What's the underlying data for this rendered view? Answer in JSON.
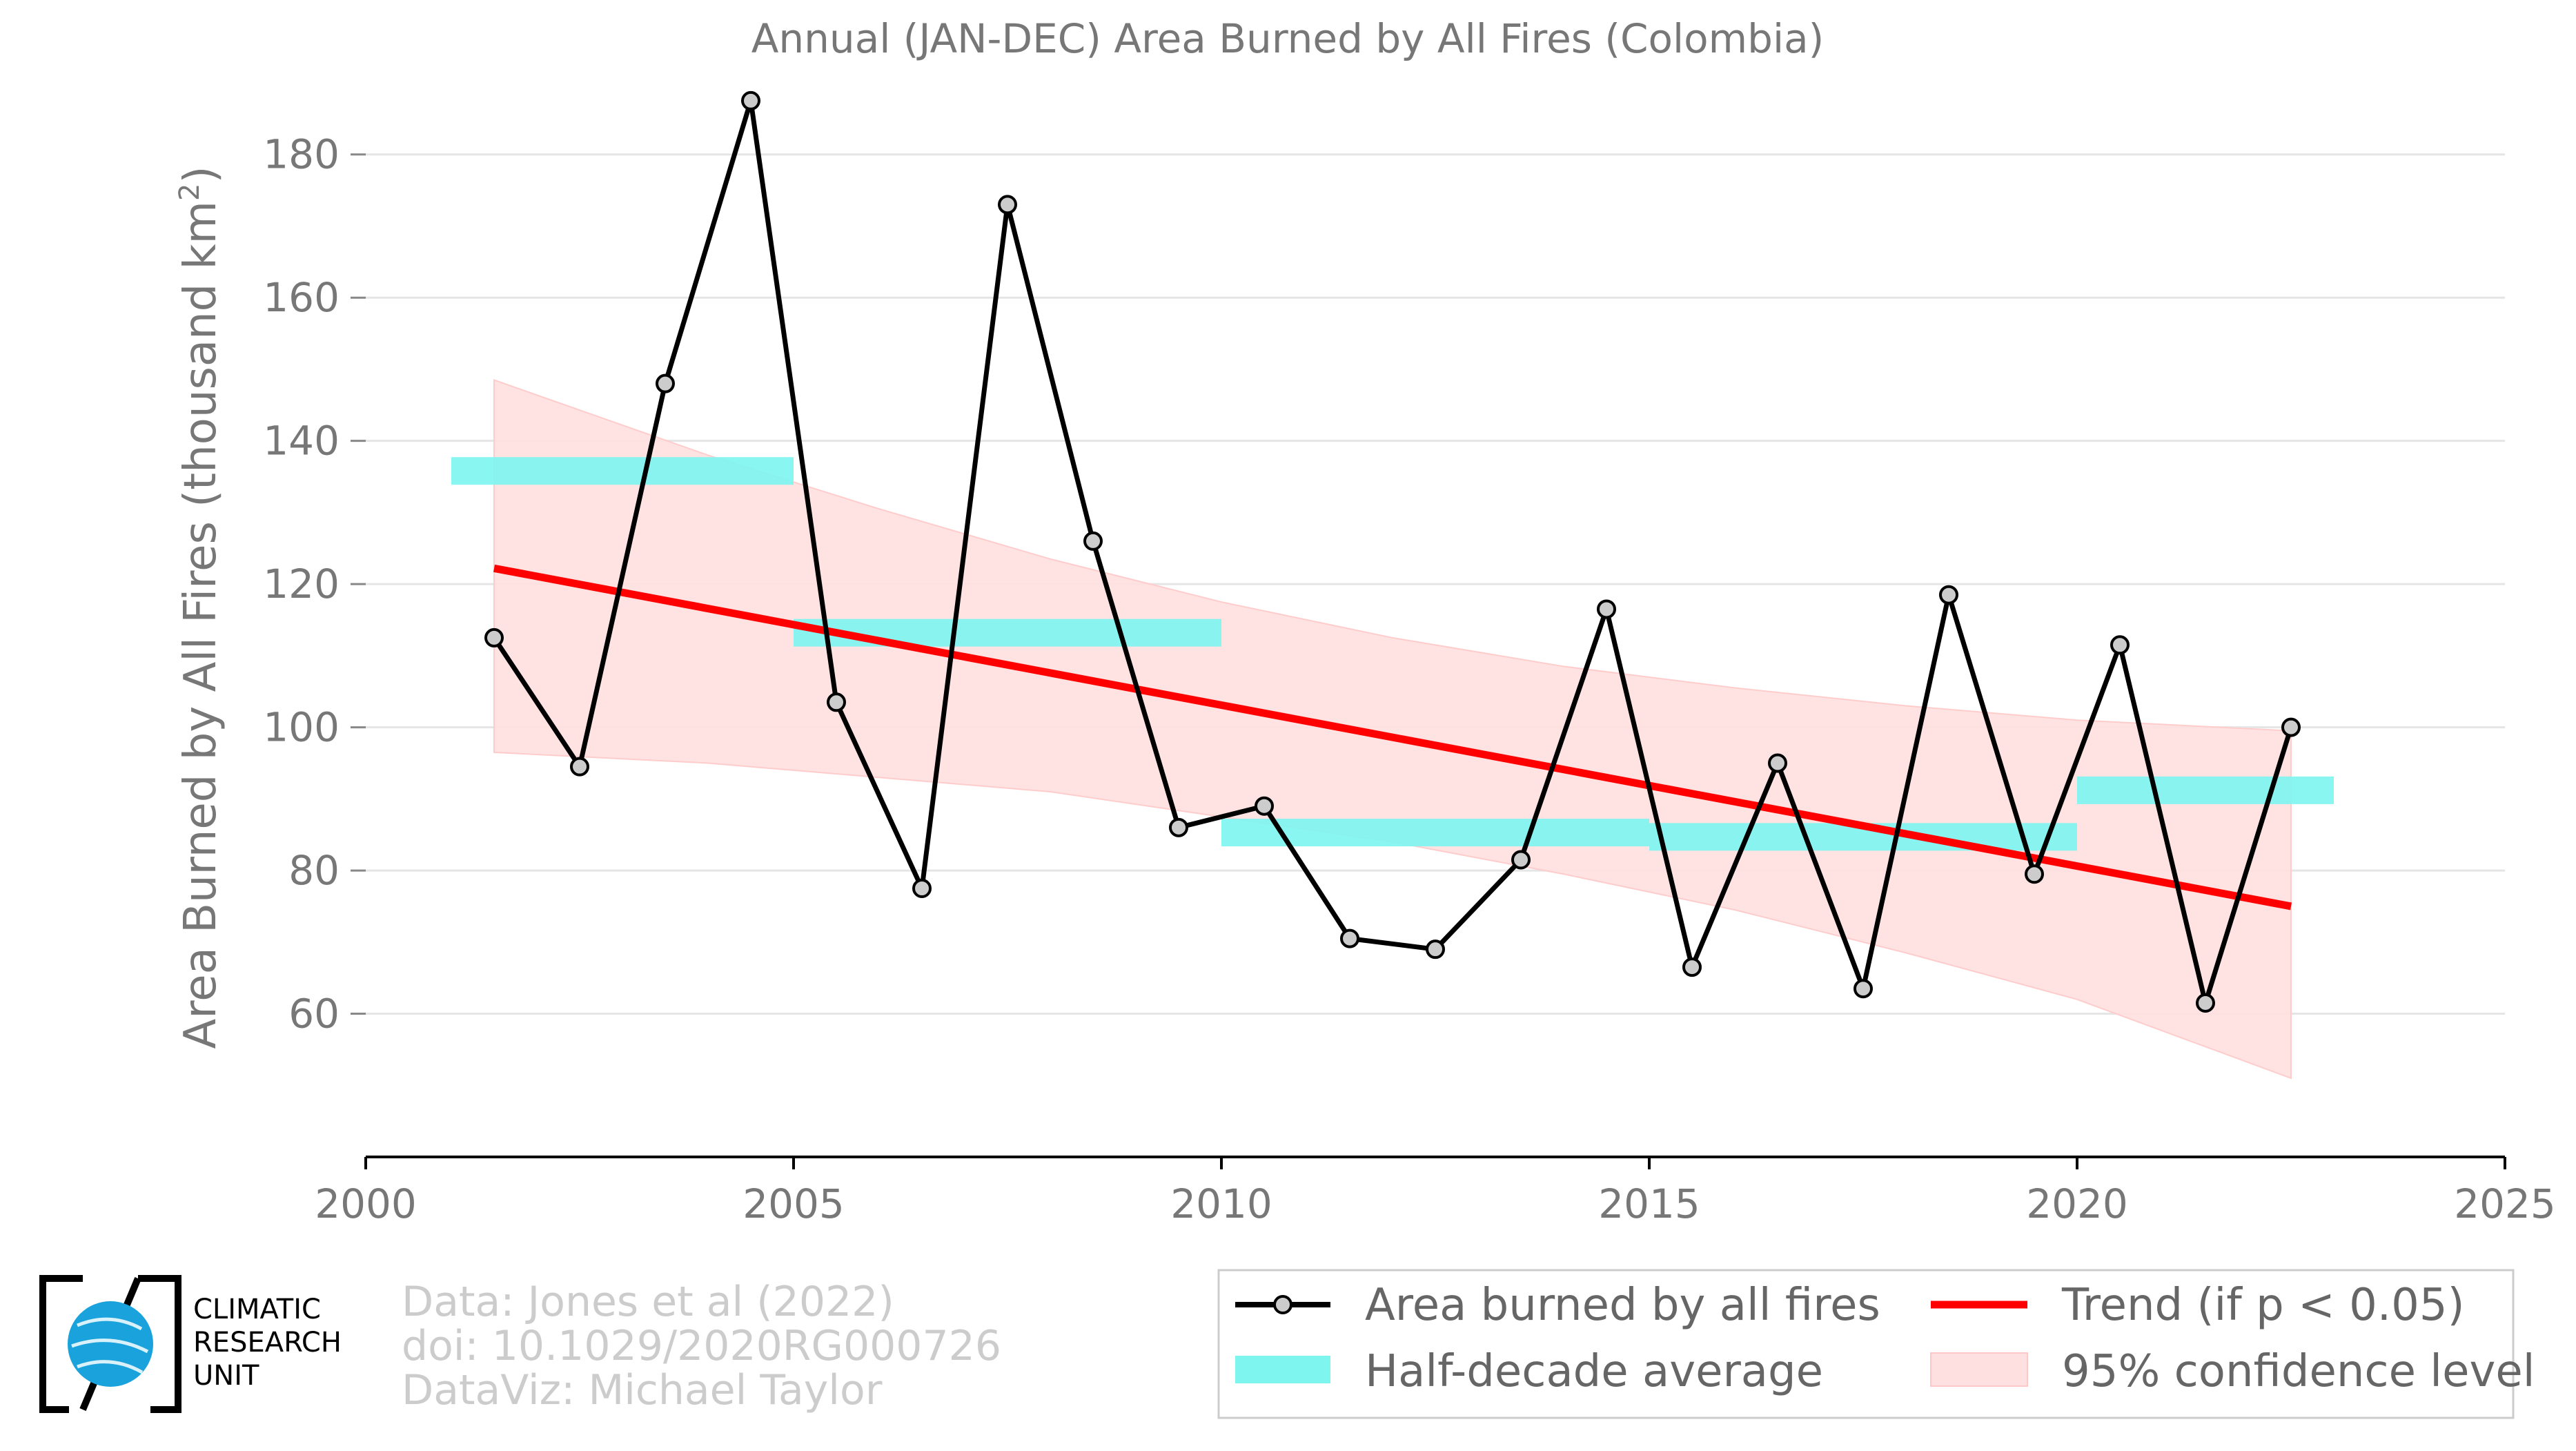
{
  "chart_data": {
    "type": "line",
    "title": "Annual (JAN-DEC) Area Burned by All Fires (Colombia)",
    "ylabel": "Area Burned by All Fires (thousand km",
    "ylabel_sup": "2",
    "ylabel_close": ")",
    "xlim": [
      2000,
      2025
    ],
    "ylim": [
      40,
      190
    ],
    "xticks": [
      2000,
      2005,
      2010,
      2015,
      2020,
      2025
    ],
    "yticks": [
      60,
      80,
      100,
      120,
      140,
      160,
      180
    ],
    "grid": true,
    "legend_position": "bottom-right",
    "series": [
      {
        "name": "Area burned by all fires",
        "color": "#000000",
        "marker_color": "#cccccc",
        "x": [
          2001.5,
          2002.5,
          2003.5,
          2004.5,
          2005.5,
          2006.5,
          2007.5,
          2008.5,
          2009.5,
          2010.5,
          2011.5,
          2012.5,
          2013.5,
          2014.5,
          2015.5,
          2016.5,
          2017.5,
          2018.5,
          2019.5,
          2020.5,
          2021.5,
          2022.5
        ],
        "y": [
          112.5,
          94.5,
          148,
          187.5,
          103.5,
          77.5,
          173,
          126,
          86,
          89,
          70.5,
          69,
          81.5,
          116.5,
          66.5,
          95,
          63.5,
          118.5,
          79.5,
          111.5,
          61.5,
          100
        ]
      },
      {
        "name": "Half-decade average",
        "color": "#7ff5f0",
        "segments": [
          {
            "x0": 2001,
            "x1": 2005,
            "y": 135.8
          },
          {
            "x0": 2005,
            "x1": 2010,
            "y": 113.2
          },
          {
            "x0": 2010,
            "x1": 2015,
            "y": 85.3
          },
          {
            "x0": 2015,
            "x1": 2020,
            "y": 84.7
          },
          {
            "x0": 2020,
            "x1": 2023,
            "y": 91.2
          }
        ]
      },
      {
        "name": "Trend (if p < 0.05)",
        "color": "#ff0000",
        "x": [
          2001.5,
          2022.5
        ],
        "y": [
          122.2,
          75
        ]
      },
      {
        "name": "95% confidence level",
        "color": "#ffe0e0",
        "x": [
          2001.5,
          2004,
          2006,
          2008,
          2010,
          2012,
          2014,
          2016,
          2018,
          2020,
          2022.5
        ],
        "upper": [
          148.5,
          138,
          130.5,
          123.5,
          117.5,
          112.5,
          108.5,
          105.5,
          103,
          101,
          99.5
        ],
        "lower": [
          96.5,
          95,
          93,
          91,
          87.5,
          84,
          79.5,
          74.5,
          68.5,
          62,
          51
        ]
      }
    ]
  },
  "legend": {
    "items": [
      "Area burned by all fires",
      "Trend (if p < 0.05)",
      "Half-decade average",
      "95% confidence level"
    ]
  },
  "credits": {
    "line1": "Data: Jones et al (2022)",
    "line2": "doi: 10.1029/2020RG000726",
    "line3": "DataViz: Michael Taylor"
  },
  "logo": {
    "line1": "CLIMATIC",
    "line2": "RESEARCH",
    "line3": "UNIT"
  }
}
